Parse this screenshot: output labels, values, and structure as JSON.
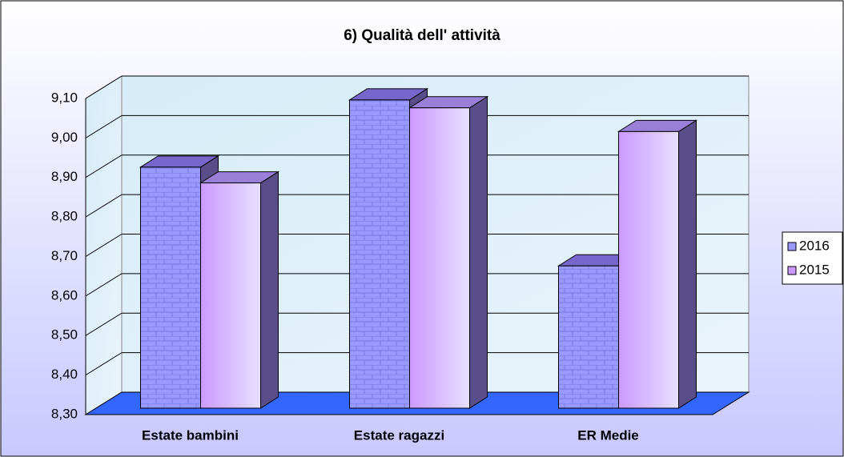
{
  "chart_data": {
    "type": "bar",
    "title": "6) Qualità dell' attività",
    "categories": [
      "Estate bambini",
      "Estate ragazzi",
      "ER Medie"
    ],
    "series": [
      {
        "name": "2016",
        "color": "#9999ff",
        "values": [
          8.91,
          9.08,
          8.66
        ]
      },
      {
        "name": "2015",
        "color": "#cc99ff",
        "values": [
          8.87,
          9.06,
          9.0
        ]
      }
    ],
    "ylim": [
      8.3,
      9.1
    ],
    "yticks": [
      {
        "value": 8.3,
        "label": "8,30"
      },
      {
        "value": 8.4,
        "label": "8,40"
      },
      {
        "value": 8.5,
        "label": "8,50"
      },
      {
        "value": 8.6,
        "label": "8,60"
      },
      {
        "value": 8.7,
        "label": "8,70"
      },
      {
        "value": 8.8,
        "label": "8,80"
      },
      {
        "value": 8.9,
        "label": "8,90"
      },
      {
        "value": 9.0,
        "label": "9,00"
      },
      {
        "value": 9.1,
        "label": "9,10"
      }
    ],
    "grid": true,
    "legend": "right"
  }
}
